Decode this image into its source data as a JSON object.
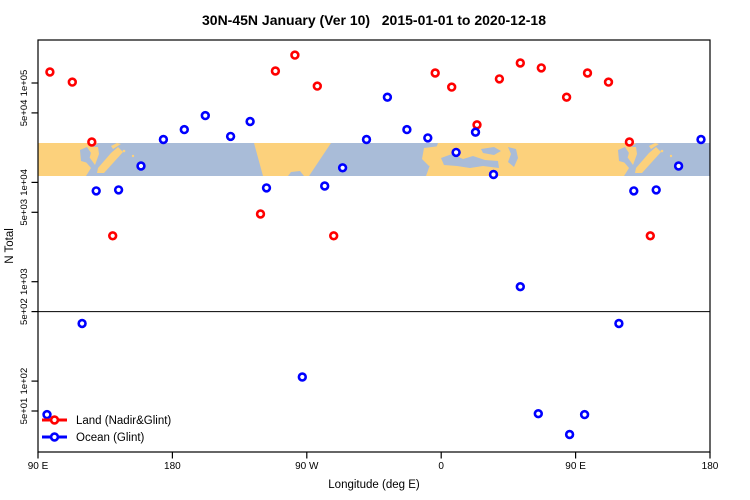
{
  "title": "30N-45N January (Ver 10)   2015-01-01 to 2020-12-18",
  "chart_data": {
    "type": "scatter",
    "title": "30N-45N January (Ver 10)   2015-01-01 to 2020-12-18",
    "xlabel": "Longitude (deg E)",
    "ylabel": "N Total",
    "x_axis": {
      "tick_positions_deg": [
        90,
        180,
        270,
        360,
        450,
        540
      ],
      "tick_labels": [
        "90 E",
        "180",
        "90 W",
        "0",
        "90 E",
        "180"
      ],
      "range_deg": [
        90,
        540
      ],
      "note": "longitude axis starts at 90E and wraps eastward 450 degrees, so 90E-180 data repeats at both ends"
    },
    "y_axis": {
      "scale": "log10",
      "tick_values": [
        50,
        100,
        500,
        1000,
        5000,
        10000,
        50000,
        100000
      ],
      "tick_labels": [
        "5e+01",
        "1e+02",
        "5e+02",
        "1e+03",
        "5e+03",
        "1e+04",
        "5e+04",
        "1e+05"
      ],
      "range": [
        18,
        275000
      ]
    },
    "reference_line_value": 500,
    "series": [
      {
        "name": "Land (Nadir&Glint)",
        "color": "#ff0000",
        "points": [
          {
            "lon": 98,
            "n": 129000
          },
          {
            "lon": 113,
            "n": 102000
          },
          {
            "lon": 126,
            "n": 25500
          },
          {
            "lon": 140,
            "n": 2900
          },
          {
            "lon": 239,
            "n": 4800
          },
          {
            "lon": 249,
            "n": 132000
          },
          {
            "lon": 262,
            "n": 191000
          },
          {
            "lon": 277,
            "n": 93000
          },
          {
            "lon": 288,
            "n": 2900
          },
          {
            "lon": 356,
            "n": 126000
          },
          {
            "lon": 367,
            "n": 91000
          },
          {
            "lon": 384,
            "n": 38000
          },
          {
            "lon": 399,
            "n": 110000
          },
          {
            "lon": 413,
            "n": 159000
          },
          {
            "lon": 427,
            "n": 142000
          },
          {
            "lon": 444,
            "n": 72000
          },
          {
            "lon": 458,
            "n": 126000
          },
          {
            "lon": 472,
            "n": 102000
          },
          {
            "lon": 486,
            "n": 25500
          },
          {
            "lon": 500,
            "n": 2900
          }
        ]
      },
      {
        "name": "Ocean (Glint)",
        "color": "#0000ff",
        "points": [
          {
            "lon": 96,
            "n": 46
          },
          {
            "lon": 119.5,
            "n": 380
          },
          {
            "lon": 129,
            "n": 8200
          },
          {
            "lon": 144,
            "n": 8400
          },
          {
            "lon": 159,
            "n": 14600
          },
          {
            "lon": 174,
            "n": 27000
          },
          {
            "lon": 188,
            "n": 34000
          },
          {
            "lon": 202,
            "n": 47000
          },
          {
            "lon": 219,
            "n": 29000
          },
          {
            "lon": 232,
            "n": 41000
          },
          {
            "lon": 243,
            "n": 8800
          },
          {
            "lon": 267,
            "n": 110
          },
          {
            "lon": 282,
            "n": 9200
          },
          {
            "lon": 294,
            "n": 14000
          },
          {
            "lon": 310,
            "n": 27000
          },
          {
            "lon": 324,
            "n": 72000
          },
          {
            "lon": 337,
            "n": 34000
          },
          {
            "lon": 351,
            "n": 28000
          },
          {
            "lon": 370,
            "n": 20000
          },
          {
            "lon": 383,
            "n": 32000
          },
          {
            "lon": 395,
            "n": 12000
          },
          {
            "lon": 413,
            "n": 890
          },
          {
            "lon": 425,
            "n": 47
          },
          {
            "lon": 446,
            "n": 29
          },
          {
            "lon": 456,
            "n": 46
          },
          {
            "lon": 479,
            "n": 380
          },
          {
            "lon": 489,
            "n": 8200
          },
          {
            "lon": 504,
            "n": 8400
          },
          {
            "lon": 519,
            "n": 14600
          },
          {
            "lon": 534,
            "n": 27000
          }
        ]
      }
    ],
    "legend_position": "bottom-left"
  },
  "legend": {
    "items": [
      {
        "label": "Land (Nadir&Glint)",
        "color": "#ff0000"
      },
      {
        "label": "Ocean (Glint)",
        "color": "#0000ff"
      }
    ]
  },
  "map_band": {
    "description": "30N-45N world map latitude strip drawn across plot interior",
    "land_color": "#fcd17c",
    "ocean_color": "#a9bcd8"
  }
}
